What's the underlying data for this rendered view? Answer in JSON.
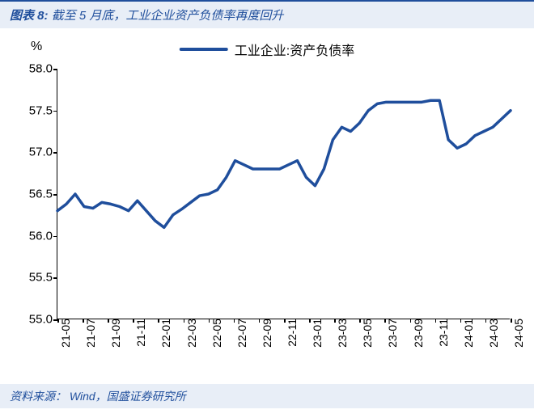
{
  "header": {
    "prefix": "图表 8:",
    "title": "截至 5 月底，工业企业资产负债率再度回升"
  },
  "chart": {
    "type": "line",
    "y_unit": "%",
    "legend_label": "工业企业:资产负债率",
    "line_color": "#1f4e9c",
    "line_width": 3.5,
    "background_color": "#ffffff",
    "axis_color": "#000000",
    "ylim": [
      55.0,
      58.0
    ],
    "yticks": [
      55.0,
      55.5,
      56.0,
      56.5,
      57.0,
      57.5,
      58.0
    ],
    "ytick_labels": [
      "55.0",
      "55.5",
      "56.0",
      "56.5",
      "57.0",
      "57.5",
      "58.0"
    ],
    "xtick_labels": [
      "21-05",
      "21-07",
      "21-09",
      "21-11",
      "22-01",
      "22-03",
      "22-05",
      "22-07",
      "22-09",
      "22-11",
      "23-01",
      "23-03",
      "23-05",
      "23-07",
      "23-09",
      "23-11",
      "24-01",
      "24-03",
      "24-05"
    ],
    "values": [
      56.3,
      56.38,
      56.5,
      56.35,
      56.33,
      56.4,
      56.38,
      56.35,
      56.3,
      56.42,
      56.3,
      56.18,
      56.1,
      56.25,
      56.32,
      56.4,
      56.48,
      56.5,
      56.55,
      56.7,
      56.9,
      56.85,
      56.8,
      56.8,
      56.8,
      56.8,
      56.85,
      56.9,
      56.7,
      56.6,
      56.8,
      57.15,
      57.3,
      57.25,
      57.35,
      57.5,
      57.58,
      57.6,
      57.6,
      57.6,
      57.6,
      57.6,
      57.62,
      57.62,
      57.15,
      57.05,
      57.1,
      57.2,
      57.25,
      57.3,
      57.4,
      57.5
    ],
    "label_fontsize": 15,
    "tick_fontsize": 14
  },
  "footer": {
    "label": "资料来源：",
    "source": "Wind，国盛证券研究所"
  }
}
